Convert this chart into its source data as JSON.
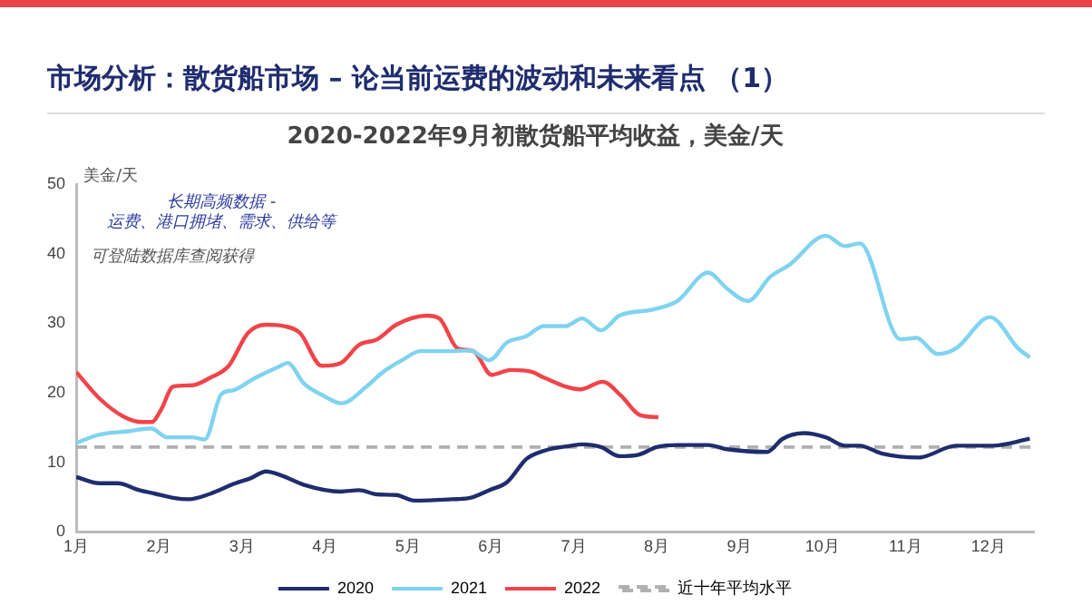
{
  "chart_data": {
    "type": "line",
    "title": "市场分析：散货船市场 – 论当前运费的波动和未来看点 （1）",
    "subtitle": "2020-2022年9月初散货船平均收益，美金/天",
    "ylabel": "美金/天",
    "annotations": [
      "长期高频数据 -\n运费、港口拥堵、需求、供给等",
      "可登陆数据库查阅获得"
    ],
    "xlim": [
      1,
      12.55
    ],
    "xticks": [
      {
        "value": 1,
        "label": "1月"
      },
      {
        "value": 2,
        "label": "2月"
      },
      {
        "value": 3,
        "label": "3月"
      },
      {
        "value": 4,
        "label": "4月"
      },
      {
        "value": 5,
        "label": "5月"
      },
      {
        "value": 6,
        "label": "6月"
      },
      {
        "value": 7,
        "label": "7月"
      },
      {
        "value": 8,
        "label": "8月"
      },
      {
        "value": 9,
        "label": "9月"
      },
      {
        "value": 10,
        "label": "10月"
      },
      {
        "value": 11,
        "label": "11月"
      },
      {
        "value": 12,
        "label": "12月"
      }
    ],
    "ylim": [
      0,
      50
    ],
    "yticks": [
      0,
      10,
      20,
      30,
      40,
      50
    ],
    "grid": false,
    "legend": "bottom",
    "ref_lines": [
      {
        "axis": "y",
        "value": 12.2,
        "label": "近十年平均水平",
        "color": "#b0b0b0",
        "line_style": "dashed"
      }
    ],
    "series": [
      {
        "name": "2020",
        "color": "#1f2d6e",
        "x": [
          1,
          1.28,
          1.5,
          1.76,
          1.95,
          2.17,
          2.36,
          2.62,
          2.92,
          3.1,
          3.29,
          3.48,
          3.74,
          4.19,
          4.41,
          4.63,
          4.86,
          5.08,
          5.53,
          5.75,
          5.98,
          6.2,
          6.43,
          6.65,
          6.97,
          7.1,
          7.33,
          7.55,
          7.78,
          8.0,
          8.25,
          8.62,
          8.85,
          9.33,
          9.52,
          9.78,
          10.04,
          10.27,
          10.45,
          10.71,
          11.16,
          11.61,
          12.05,
          12.5
        ],
        "values": [
          7.9,
          7,
          7,
          6,
          5.5,
          4.9,
          4.7,
          5.5,
          7,
          7.7,
          8.7,
          8.1,
          6.8,
          5.8,
          6,
          5.4,
          5.3,
          4.5,
          4.7,
          4.9,
          6,
          7.2,
          10.5,
          11.7,
          12.4,
          12.6,
          12.2,
          10.9,
          11.1,
          12.2,
          12.5,
          12.5,
          11.9,
          11.5,
          13.4,
          14.2,
          13.6,
          12.4,
          12.4,
          11.3,
          10.7,
          12.4,
          12.4,
          13.4
        ]
      },
      {
        "name": "2021",
        "color": "#7fd3f0",
        "x": [
          1,
          1.28,
          1.65,
          1.9,
          2.1,
          2.4,
          2.55,
          2.75,
          2.9,
          3.15,
          3.45,
          3.55,
          3.75,
          3.98,
          4.2,
          4.5,
          4.7,
          4.93,
          5.15,
          5.45,
          5.75,
          5.98,
          6.2,
          6.42,
          6.64,
          6.9,
          7.1,
          7.33,
          7.55,
          7.96,
          8.25,
          8.62,
          8.85,
          9.1,
          9.37,
          9.6,
          10.04,
          10.27,
          10.45,
          10.94,
          11.13,
          11.39,
          11.61,
          12.02,
          12.36,
          12.5
        ],
        "values": [
          12.8,
          14,
          14.5,
          14.9,
          13.6,
          13.6,
          13.3,
          19.8,
          20.4,
          22.1,
          23.8,
          24.3,
          21.3,
          19.6,
          18.5,
          20.9,
          23,
          24.7,
          26,
          26,
          26.1,
          24.7,
          27.3,
          28.1,
          29.6,
          29.6,
          30.7,
          29,
          31.1,
          32,
          33.2,
          37.3,
          35,
          33.2,
          36.7,
          38.4,
          42.6,
          41.1,
          41.5,
          27.7,
          27.9,
          25.6,
          26.4,
          30.9,
          26.4,
          25.1
        ]
      },
      {
        "name": "2022",
        "color": "#f0444a",
        "x": [
          1,
          1.28,
          1.57,
          1.8,
          1.91,
          2.02,
          2.17,
          2.4,
          2.62,
          2.84,
          3.07,
          3.29,
          3.51,
          3.7,
          3.96,
          4.19,
          4.41,
          4.63,
          4.86,
          5.23,
          5.38,
          5.6,
          5.79,
          6.01,
          6.24,
          6.5,
          6.64,
          7.08,
          7.35,
          7.57,
          7.8,
          8.02
        ],
        "values": [
          23,
          19.2,
          16.6,
          15.8,
          15.8,
          17.5,
          20.9,
          21.1,
          22.2,
          23.9,
          28.6,
          29.8,
          29.6,
          28.6,
          23.9,
          24.3,
          26.9,
          27.7,
          29.8,
          31.1,
          30.7,
          26.4,
          26,
          22.6,
          23.3,
          23,
          22.2,
          20.5,
          21.6,
          19.6,
          16.8,
          16.5
        ]
      }
    ]
  }
}
